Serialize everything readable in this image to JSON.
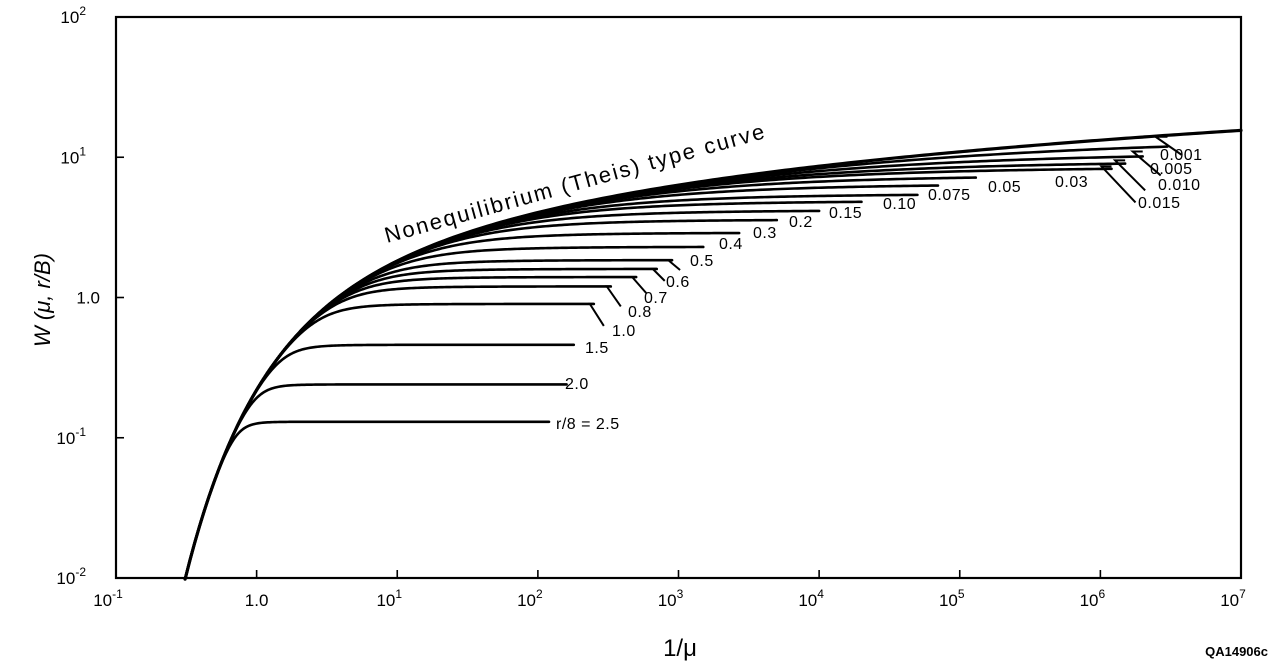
{
  "chart_data": {
    "type": "line",
    "title": "Nonequilibrium (Theis) type curve",
    "xlabel": "1/μ",
    "ylabel": "W (μ, r/B)",
    "xscale": "log",
    "yscale": "log",
    "xlim": [
      0.1,
      10000000
    ],
    "ylim": [
      0.01,
      100
    ],
    "x_ticks": [
      {
        "value": 0.1,
        "base": "10",
        "exp": "-1"
      },
      {
        "value": 1,
        "base": "1.0",
        "exp": ""
      },
      {
        "value": 10,
        "base": "10",
        "exp": "1"
      },
      {
        "value": 100,
        "base": "10",
        "exp": "2"
      },
      {
        "value": 1000,
        "base": "10",
        "exp": "3"
      },
      {
        "value": 10000,
        "base": "10",
        "exp": "4"
      },
      {
        "value": 100000,
        "base": "10",
        "exp": "5"
      },
      {
        "value": 1000000,
        "base": "10",
        "exp": "6"
      },
      {
        "value": 10000000,
        "base": "10",
        "exp": "7"
      }
    ],
    "y_ticks": [
      {
        "value": 0.01,
        "base": "10",
        "exp": "-2"
      },
      {
        "value": 0.1,
        "base": "10",
        "exp": "-1"
      },
      {
        "value": 1,
        "base": "1.0",
        "exp": ""
      },
      {
        "value": 10,
        "base": "10",
        "exp": "1"
      },
      {
        "value": 100,
        "base": "10",
        "exp": "2"
      }
    ],
    "series": [
      {
        "label": "0.001",
        "plateau": 14.0,
        "x_end": 3000000
      },
      {
        "label": "0.005",
        "plateau": 11.0,
        "x_end": 2000000
      },
      {
        "label": "0.010",
        "plateau": 9.5,
        "x_end": 1500000
      },
      {
        "label": "0.015",
        "plateau": 8.6,
        "x_end": 1200000
      },
      {
        "label": "0.03",
        "plateau": 7.5,
        "x_end": 130000
      },
      {
        "label": "0.05",
        "plateau": 6.5,
        "x_end": 70000
      },
      {
        "label": "0.075",
        "plateau": 5.5,
        "x_end": 50000
      },
      {
        "label": "0.10",
        "plateau": 4.9,
        "x_end": 20000
      },
      {
        "label": "0.15",
        "plateau": 4.2,
        "x_end": 10000
      },
      {
        "label": "0.2",
        "plateau": 3.6,
        "x_end": 5000
      },
      {
        "label": "0.3",
        "plateau": 2.9,
        "x_end": 2700
      },
      {
        "label": "0.4",
        "plateau": 2.3,
        "x_end": 1500
      },
      {
        "label": "0.5",
        "plateau": 1.85,
        "x_end": 900
      },
      {
        "label": "0.6",
        "plateau": 1.6,
        "x_end": 700
      },
      {
        "label": "0.7",
        "plateau": 1.4,
        "x_end": 500
      },
      {
        "label": "0.8",
        "plateau": 1.2,
        "x_end": 330
      },
      {
        "label": "1.0",
        "plateau": 0.9,
        "x_end": 250
      },
      {
        "label": "1.5",
        "plateau": 0.46,
        "x_end": 180
      },
      {
        "label": "2.0",
        "plateau": 0.24,
        "x_end": 160
      },
      {
        "label": "r/8  = 2.5",
        "plateau": 0.13,
        "x_end": 120
      }
    ]
  },
  "figure_id": "QA14906c"
}
